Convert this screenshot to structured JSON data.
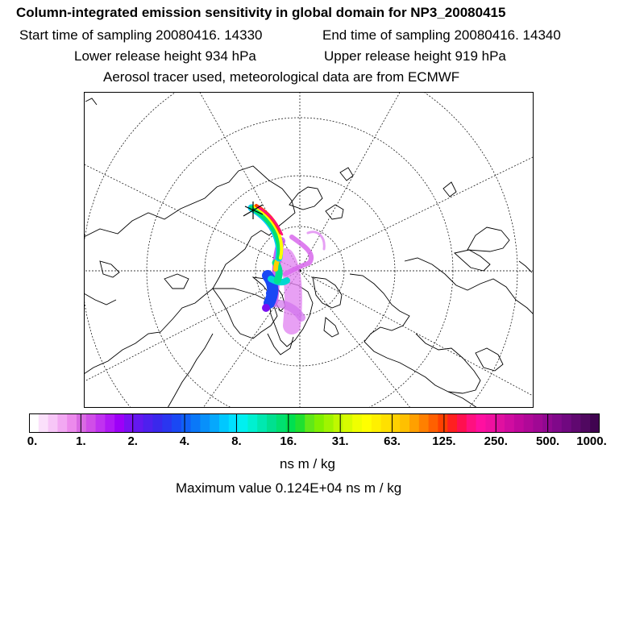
{
  "header": {
    "title": "Column-integrated emission sensitivity in global domain for NP3_20080415",
    "start": "Start time of sampling 20080416. 14330",
    "end": "End time of sampling 20080416. 14340",
    "lower": "Lower release height  934 hPa",
    "upper": "Upper release height  919 hPa",
    "aerosol": "Aerosol tracer used, meteorological data are from ECMWF"
  },
  "colorbar": {
    "ticks": [
      "0.",
      "1.",
      "2.",
      "4.",
      "8.",
      "16.",
      "31.",
      "63.",
      "125.",
      "250.",
      "500.",
      "1000."
    ],
    "colors": [
      "#ffffff",
      "#fbe0fb",
      "#f7c6f7",
      "#f2a8f2",
      "#ec8aec",
      "#d96ae3",
      "#d04ee8",
      "#c032f0",
      "#b018f5",
      "#9d00f8",
      "#7a10f2",
      "#6418f0",
      "#4e20ee",
      "#3a28ec",
      "#2a36f0",
      "#1a48f4",
      "#1060f6",
      "#0a78f8",
      "#0890fa",
      "#06a8fc",
      "#00c8ff",
      "#00e0ff",
      "#00f0f0",
      "#00f0d0",
      "#00e8b0",
      "#00e090",
      "#00e070",
      "#00e050",
      "#20e030",
      "#60e818",
      "#80f000",
      "#a0f400",
      "#c0f800",
      "#d8fc00",
      "#f0ff00",
      "#ffff00",
      "#fff000",
      "#ffe000",
      "#ffd000",
      "#ffc000",
      "#ffa000",
      "#ff8000",
      "#ff6000",
      "#ff4000",
      "#ff2020",
      "#ff1050",
      "#ff1080",
      "#ff10a0",
      "#f010a0",
      "#e010a0",
      "#d00ca0",
      "#c0089c",
      "#b00898",
      "#a00894",
      "#900890",
      "#80088a",
      "#700880",
      "#600870",
      "#500860",
      "#400450"
    ],
    "units": "ns m / kg",
    "max_value": "Maximum value  0.124E+04 ns m / kg"
  }
}
